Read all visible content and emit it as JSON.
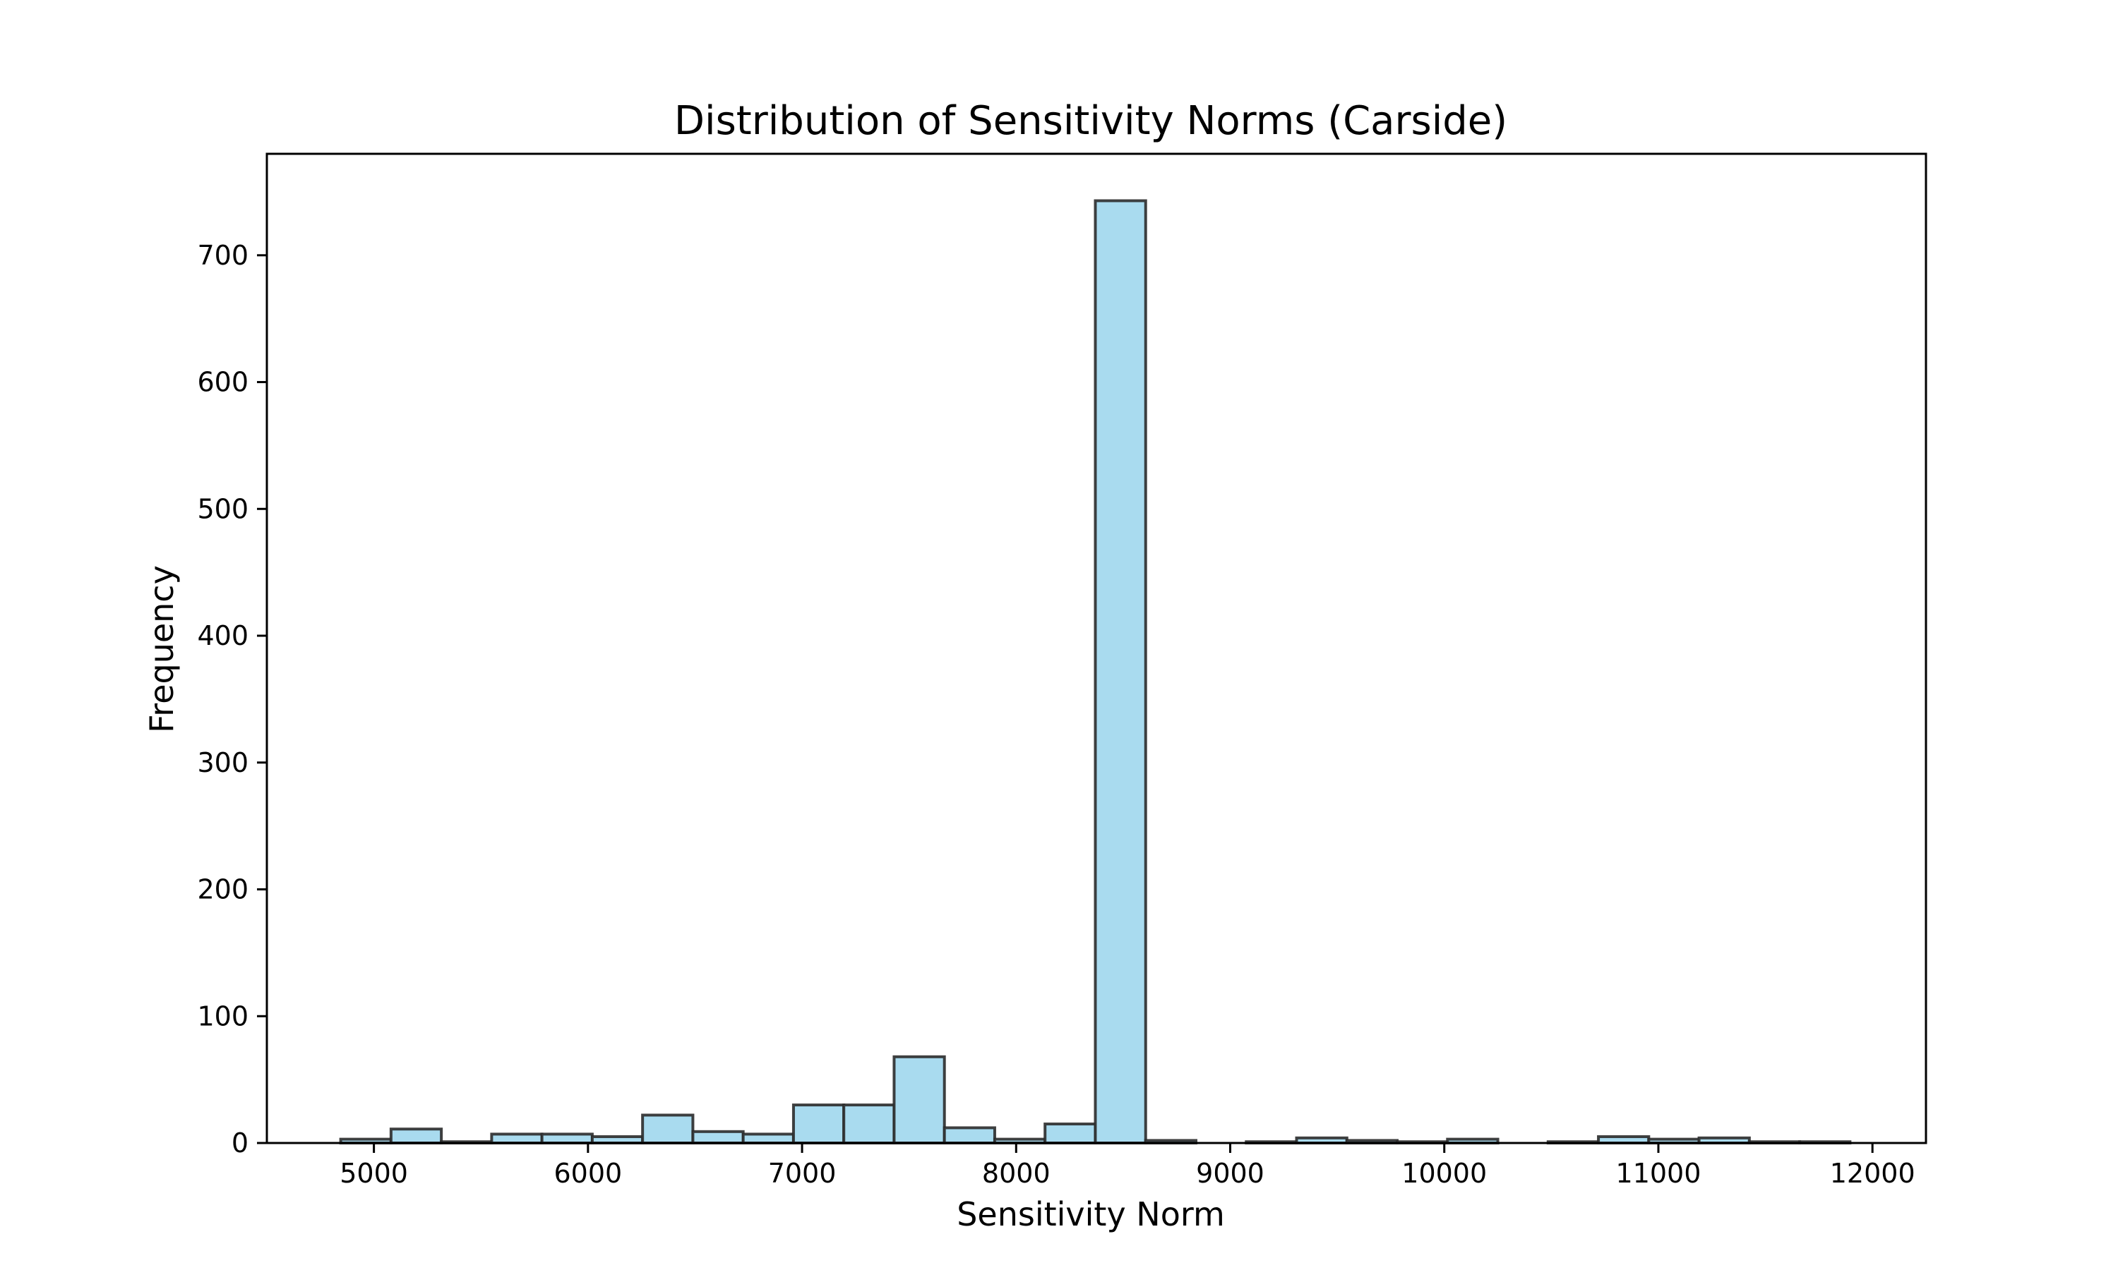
{
  "chart_data": {
    "type": "bar",
    "title": "Distribution of Sensitivity Norms (Carside)",
    "xlabel": "Sensitivity Norm",
    "ylabel": "Frequency",
    "xlim": [
      4500,
      12250
    ],
    "ylim": [
      0,
      780
    ],
    "xticks": [
      5000,
      6000,
      7000,
      8000,
      9000,
      10000,
      11000,
      12000
    ],
    "yticks": [
      0,
      100,
      200,
      300,
      400,
      500,
      600,
      700
    ],
    "bar_color": "#a9dbef",
    "edge_color": "#2b2b2b",
    "grid": false,
    "bins": [
      {
        "x0": 4845,
        "x1": 5080,
        "value": 3
      },
      {
        "x0": 5080,
        "x1": 5315,
        "value": 11
      },
      {
        "x0": 5315,
        "x1": 5550,
        "value": 1
      },
      {
        "x0": 5550,
        "x1": 5785,
        "value": 7
      },
      {
        "x0": 5785,
        "x1": 6020,
        "value": 7
      },
      {
        "x0": 6020,
        "x1": 6255,
        "value": 5
      },
      {
        "x0": 6255,
        "x1": 6490,
        "value": 22
      },
      {
        "x0": 6490,
        "x1": 6725,
        "value": 9
      },
      {
        "x0": 6725,
        "x1": 6960,
        "value": 7
      },
      {
        "x0": 6960,
        "x1": 7195,
        "value": 30
      },
      {
        "x0": 7195,
        "x1": 7430,
        "value": 30
      },
      {
        "x0": 7430,
        "x1": 7665,
        "value": 68
      },
      {
        "x0": 7665,
        "x1": 7900,
        "value": 12
      },
      {
        "x0": 7900,
        "x1": 8135,
        "value": 3
      },
      {
        "x0": 8135,
        "x1": 8370,
        "value": 15
      },
      {
        "x0": 8370,
        "x1": 8605,
        "value": 743
      },
      {
        "x0": 8605,
        "x1": 8840,
        "value": 2
      },
      {
        "x0": 8840,
        "x1": 9075,
        "value": 0
      },
      {
        "x0": 9075,
        "x1": 9310,
        "value": 1
      },
      {
        "x0": 9310,
        "x1": 9545,
        "value": 4
      },
      {
        "x0": 9545,
        "x1": 9780,
        "value": 2
      },
      {
        "x0": 9780,
        "x1": 10015,
        "value": 1
      },
      {
        "x0": 10015,
        "x1": 10250,
        "value": 3
      },
      {
        "x0": 10250,
        "x1": 10485,
        "value": 0
      },
      {
        "x0": 10485,
        "x1": 10720,
        "value": 1
      },
      {
        "x0": 10720,
        "x1": 10955,
        "value": 5
      },
      {
        "x0": 10955,
        "x1": 11190,
        "value": 3
      },
      {
        "x0": 11190,
        "x1": 11425,
        "value": 4
      },
      {
        "x0": 11425,
        "x1": 11660,
        "value": 1
      },
      {
        "x0": 11660,
        "x1": 11895,
        "value": 1
      }
    ]
  }
}
